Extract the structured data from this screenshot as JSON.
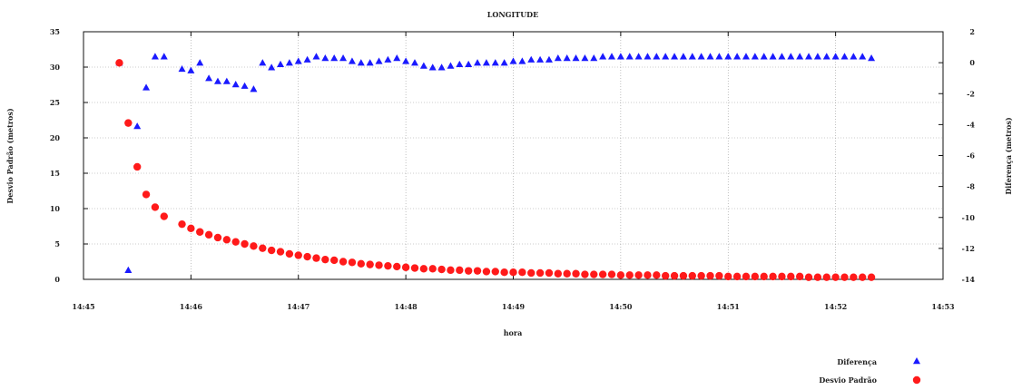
{
  "chart_data": {
    "type": "scatter",
    "title": "LONGITUDE",
    "xlabel": "hora",
    "ylabel_left": "Desvio Padrão (metros)",
    "ylabel_right": "Diferença (metros)",
    "xlim": [
      "14:45",
      "14:53"
    ],
    "x_ticks": [
      "14:45",
      "14:46",
      "14:47",
      "14:48",
      "14:49",
      "14:50",
      "14:51",
      "14:52",
      "14:53"
    ],
    "ylim_left": [
      0,
      35
    ],
    "y_ticks_left": [
      0,
      5,
      10,
      15,
      20,
      25,
      30,
      35
    ],
    "ylim_right": [
      -14,
      2
    ],
    "y_ticks_right": [
      -14,
      -12,
      -10,
      -8,
      -6,
      -4,
      -2,
      0,
      2
    ],
    "grid": true,
    "legend_position": "bottom-right",
    "series": [
      {
        "name": "Diferença",
        "axis": "right",
        "marker": "triangle",
        "color": "#1a1aff",
        "points": [
          [
            "14:45:20",
            0.0
          ],
          [
            "14:45:25",
            -13.4
          ],
          [
            "14:45:30",
            -4.1
          ],
          [
            "14:45:35",
            -1.6
          ],
          [
            "14:45:40",
            0.4
          ],
          [
            "14:45:45",
            0.4
          ],
          [
            "14:45:55",
            -0.4
          ],
          [
            "14:46:00",
            -0.5
          ],
          [
            "14:46:05",
            0.0
          ],
          [
            "14:46:10",
            -1.0
          ],
          [
            "14:46:15",
            -1.2
          ],
          [
            "14:46:20",
            -1.2
          ],
          [
            "14:46:25",
            -1.4
          ],
          [
            "14:46:30",
            -1.5
          ],
          [
            "14:46:35",
            -1.7
          ],
          [
            "14:46:40",
            0.0
          ],
          [
            "14:46:45",
            -0.3
          ],
          [
            "14:46:50",
            -0.1
          ],
          [
            "14:46:55",
            0.0
          ],
          [
            "14:47:00",
            0.1
          ],
          [
            "14:47:05",
            0.2
          ],
          [
            "14:47:10",
            0.4
          ],
          [
            "14:47:15",
            0.3
          ],
          [
            "14:47:20",
            0.3
          ],
          [
            "14:47:25",
            0.3
          ],
          [
            "14:47:30",
            0.1
          ],
          [
            "14:47:35",
            0.0
          ],
          [
            "14:47:40",
            0.0
          ],
          [
            "14:47:45",
            0.1
          ],
          [
            "14:47:50",
            0.2
          ],
          [
            "14:47:55",
            0.3
          ],
          [
            "14:48:00",
            0.1
          ],
          [
            "14:48:05",
            0.0
          ],
          [
            "14:48:10",
            -0.2
          ],
          [
            "14:48:15",
            -0.3
          ],
          [
            "14:48:20",
            -0.3
          ],
          [
            "14:48:25",
            -0.2
          ],
          [
            "14:48:30",
            -0.1
          ],
          [
            "14:48:35",
            -0.1
          ],
          [
            "14:48:40",
            0.0
          ],
          [
            "14:48:45",
            0.0
          ],
          [
            "14:48:50",
            0.0
          ],
          [
            "14:48:55",
            0.0
          ],
          [
            "14:49:00",
            0.1
          ],
          [
            "14:49:05",
            0.1
          ],
          [
            "14:49:10",
            0.2
          ],
          [
            "14:49:15",
            0.2
          ],
          [
            "14:49:20",
            0.2
          ],
          [
            "14:49:25",
            0.3
          ],
          [
            "14:49:30",
            0.3
          ],
          [
            "14:49:35",
            0.3
          ],
          [
            "14:49:40",
            0.3
          ],
          [
            "14:49:45",
            0.3
          ],
          [
            "14:49:50",
            0.4
          ],
          [
            "14:49:55",
            0.4
          ],
          [
            "14:50:00",
            0.4
          ],
          [
            "14:50:05",
            0.4
          ],
          [
            "14:50:10",
            0.4
          ],
          [
            "14:50:15",
            0.4
          ],
          [
            "14:50:20",
            0.4
          ],
          [
            "14:50:25",
            0.4
          ],
          [
            "14:50:30",
            0.4
          ],
          [
            "14:50:35",
            0.4
          ],
          [
            "14:50:40",
            0.4
          ],
          [
            "14:50:45",
            0.4
          ],
          [
            "14:50:50",
            0.4
          ],
          [
            "14:50:55",
            0.4
          ],
          [
            "14:51:00",
            0.4
          ],
          [
            "14:51:05",
            0.4
          ],
          [
            "14:51:10",
            0.4
          ],
          [
            "14:51:15",
            0.4
          ],
          [
            "14:51:20",
            0.4
          ],
          [
            "14:51:25",
            0.4
          ],
          [
            "14:51:30",
            0.4
          ],
          [
            "14:51:35",
            0.4
          ],
          [
            "14:51:40",
            0.4
          ],
          [
            "14:51:45",
            0.4
          ],
          [
            "14:51:50",
            0.4
          ],
          [
            "14:51:55",
            0.4
          ],
          [
            "14:52:00",
            0.4
          ],
          [
            "14:52:05",
            0.4
          ],
          [
            "14:52:10",
            0.4
          ],
          [
            "14:52:15",
            0.4
          ],
          [
            "14:52:20",
            0.3
          ]
        ]
      },
      {
        "name": "Desvio Padrão",
        "axis": "left",
        "marker": "circle",
        "color": "#ff1a1a",
        "points": [
          [
            "14:45:20",
            30.6
          ],
          [
            "14:45:25",
            22.1
          ],
          [
            "14:45:30",
            15.9
          ],
          [
            "14:45:35",
            12.0
          ],
          [
            "14:45:40",
            10.2
          ],
          [
            "14:45:45",
            8.9
          ],
          [
            "14:45:55",
            7.8
          ],
          [
            "14:46:00",
            7.2
          ],
          [
            "14:46:05",
            6.7
          ],
          [
            "14:46:10",
            6.3
          ],
          [
            "14:46:15",
            5.9
          ],
          [
            "14:46:20",
            5.6
          ],
          [
            "14:46:25",
            5.3
          ],
          [
            "14:46:30",
            5.0
          ],
          [
            "14:46:35",
            4.7
          ],
          [
            "14:46:40",
            4.4
          ],
          [
            "14:46:45",
            4.1
          ],
          [
            "14:46:50",
            3.9
          ],
          [
            "14:46:55",
            3.6
          ],
          [
            "14:47:00",
            3.4
          ],
          [
            "14:47:05",
            3.2
          ],
          [
            "14:47:10",
            3.0
          ],
          [
            "14:47:15",
            2.8
          ],
          [
            "14:47:20",
            2.7
          ],
          [
            "14:47:25",
            2.5
          ],
          [
            "14:47:30",
            2.4
          ],
          [
            "14:47:35",
            2.2
          ],
          [
            "14:47:40",
            2.1
          ],
          [
            "14:47:45",
            2.0
          ],
          [
            "14:47:50",
            1.9
          ],
          [
            "14:47:55",
            1.8
          ],
          [
            "14:48:00",
            1.7
          ],
          [
            "14:48:05",
            1.6
          ],
          [
            "14:48:10",
            1.5
          ],
          [
            "14:48:15",
            1.5
          ],
          [
            "14:48:20",
            1.4
          ],
          [
            "14:48:25",
            1.3
          ],
          [
            "14:48:30",
            1.3
          ],
          [
            "14:48:35",
            1.2
          ],
          [
            "14:48:40",
            1.2
          ],
          [
            "14:48:45",
            1.1
          ],
          [
            "14:48:50",
            1.1
          ],
          [
            "14:48:55",
            1.0
          ],
          [
            "14:49:00",
            1.0
          ],
          [
            "14:49:05",
            1.0
          ],
          [
            "14:49:10",
            0.9
          ],
          [
            "14:49:15",
            0.9
          ],
          [
            "14:49:20",
            0.9
          ],
          [
            "14:49:25",
            0.8
          ],
          [
            "14:49:30",
            0.8
          ],
          [
            "14:49:35",
            0.8
          ],
          [
            "14:49:40",
            0.7
          ],
          [
            "14:49:45",
            0.7
          ],
          [
            "14:49:50",
            0.7
          ],
          [
            "14:49:55",
            0.7
          ],
          [
            "14:50:00",
            0.6
          ],
          [
            "14:50:05",
            0.6
          ],
          [
            "14:50:10",
            0.6
          ],
          [
            "14:50:15",
            0.6
          ],
          [
            "14:50:20",
            0.6
          ],
          [
            "14:50:25",
            0.5
          ],
          [
            "14:50:30",
            0.5
          ],
          [
            "14:50:35",
            0.5
          ],
          [
            "14:50:40",
            0.5
          ],
          [
            "14:50:45",
            0.5
          ],
          [
            "14:50:50",
            0.5
          ],
          [
            "14:50:55",
            0.5
          ],
          [
            "14:51:00",
            0.4
          ],
          [
            "14:51:05",
            0.4
          ],
          [
            "14:51:10",
            0.4
          ],
          [
            "14:51:15",
            0.4
          ],
          [
            "14:51:20",
            0.4
          ],
          [
            "14:51:25",
            0.4
          ],
          [
            "14:51:30",
            0.4
          ],
          [
            "14:51:35",
            0.4
          ],
          [
            "14:51:40",
            0.4
          ],
          [
            "14:51:45",
            0.3
          ],
          [
            "14:51:50",
            0.3
          ],
          [
            "14:51:55",
            0.3
          ],
          [
            "14:52:00",
            0.3
          ],
          [
            "14:52:05",
            0.3
          ],
          [
            "14:52:10",
            0.3
          ],
          [
            "14:52:15",
            0.3
          ],
          [
            "14:52:20",
            0.3
          ]
        ]
      }
    ]
  }
}
